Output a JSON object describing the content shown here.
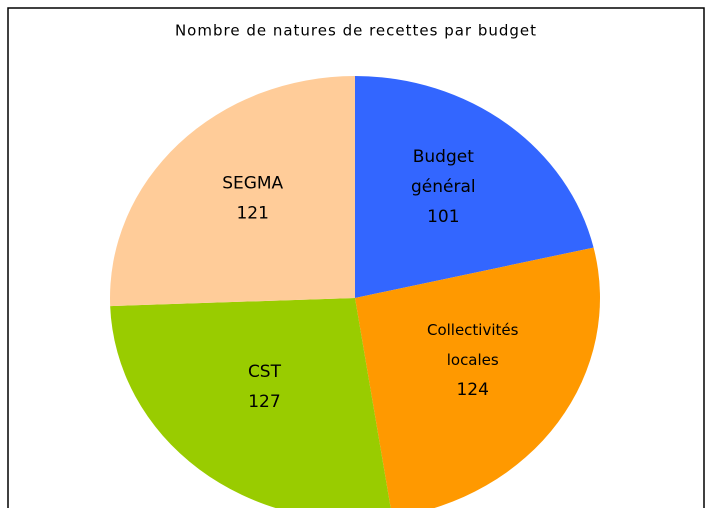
{
  "chart_data": {
    "type": "pie",
    "title": "Nombre de natures de recettes par budget",
    "categories": [
      "Budget général",
      "Collectivités locales",
      "CST",
      "SEGMA"
    ],
    "values": [
      101,
      124,
      127,
      121
    ],
    "colors": [
      "#3366ff",
      "#ff9900",
      "#99cc00",
      "#ffcc99"
    ]
  }
}
